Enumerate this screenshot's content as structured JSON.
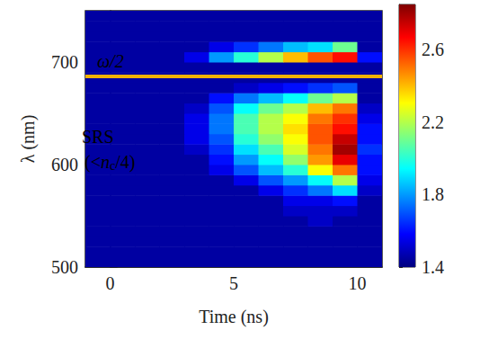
{
  "chart_data": {
    "type": "heatmap",
    "xlabel": "Time (ns)",
    "ylabel": "λ (nm)",
    "xlim": [
      -1,
      11
    ],
    "xticks": [
      0,
      5,
      10
    ],
    "ylim": [
      500,
      750
    ],
    "yticks": [
      500,
      600,
      700
    ],
    "x_bins": [
      -1,
      0,
      1,
      2,
      3,
      4,
      5,
      6,
      7,
      8,
      9,
      10,
      11
    ],
    "y_bins": [
      500,
      510,
      520,
      530,
      540,
      550,
      560,
      570,
      580,
      590,
      600,
      610,
      620,
      630,
      640,
      650,
      660,
      670,
      680,
      690,
      700,
      710,
      720,
      730,
      740,
      750
    ],
    "cells": [
      [
        1.45,
        1.45,
        1.45,
        1.45,
        1.45,
        1.45,
        1.45,
        1.45,
        1.45,
        1.45,
        1.45,
        1.45
      ],
      [
        1.45,
        1.45,
        1.45,
        1.45,
        1.45,
        1.45,
        1.45,
        1.45,
        1.45,
        1.45,
        1.45,
        1.45
      ],
      [
        1.45,
        1.45,
        1.45,
        1.45,
        1.45,
        1.45,
        1.45,
        1.45,
        1.45,
        1.45,
        1.45,
        1.45
      ],
      [
        1.45,
        1.45,
        1.45,
        1.45,
        1.45,
        1.45,
        1.45,
        1.45,
        1.45,
        1.45,
        1.45,
        1.45
      ],
      [
        1.45,
        1.45,
        1.45,
        1.45,
        1.45,
        1.45,
        1.45,
        1.45,
        1.45,
        1.5,
        1.45,
        1.45
      ],
      [
        1.45,
        1.45,
        1.45,
        1.45,
        1.45,
        1.45,
        1.45,
        1.45,
        1.5,
        1.5,
        1.5,
        1.45
      ],
      [
        1.45,
        1.45,
        1.45,
        1.45,
        1.45,
        1.45,
        1.45,
        1.45,
        1.55,
        1.55,
        1.6,
        1.45
      ],
      [
        1.45,
        1.45,
        1.45,
        1.45,
        1.45,
        1.45,
        1.45,
        1.55,
        1.65,
        1.75,
        1.9,
        1.5
      ],
      [
        1.45,
        1.45,
        1.45,
        1.45,
        1.45,
        1.45,
        1.55,
        1.7,
        1.8,
        1.95,
        2.2,
        1.55
      ],
      [
        1.45,
        1.45,
        1.45,
        1.45,
        1.45,
        1.55,
        1.7,
        1.85,
        2.0,
        2.3,
        2.5,
        1.6
      ],
      [
        1.45,
        1.45,
        1.45,
        1.45,
        1.45,
        1.6,
        1.8,
        1.95,
        2.15,
        2.45,
        2.7,
        1.6
      ],
      [
        1.45,
        1.45,
        1.45,
        1.45,
        1.5,
        1.65,
        1.9,
        2.05,
        2.25,
        2.5,
        2.8,
        1.65
      ],
      [
        1.45,
        1.45,
        1.45,
        1.45,
        1.55,
        1.7,
        2.0,
        2.15,
        2.3,
        2.55,
        2.75,
        1.6
      ],
      [
        1.45,
        1.45,
        1.45,
        1.45,
        1.55,
        1.75,
        2.05,
        2.2,
        2.35,
        2.55,
        2.65,
        1.6
      ],
      [
        1.45,
        1.45,
        1.45,
        1.45,
        1.55,
        1.75,
        2.05,
        2.2,
        2.3,
        2.5,
        2.6,
        1.55
      ],
      [
        1.45,
        1.45,
        1.45,
        1.45,
        1.5,
        1.7,
        1.95,
        2.1,
        2.2,
        2.4,
        2.5,
        1.5
      ],
      [
        1.45,
        1.45,
        1.45,
        1.45,
        1.45,
        1.6,
        1.75,
        1.85,
        1.95,
        2.1,
        2.2,
        1.45
      ],
      [
        1.45,
        1.45,
        1.45,
        1.45,
        1.45,
        1.45,
        1.5,
        1.55,
        1.6,
        1.65,
        1.7,
        1.45
      ],
      [
        1.45,
        1.45,
        1.45,
        1.45,
        1.45,
        1.45,
        1.45,
        1.45,
        1.45,
        1.45,
        1.45,
        1.45
      ],
      [
        1.45,
        1.45,
        1.45,
        1.45,
        1.45,
        1.45,
        1.45,
        1.45,
        1.45,
        1.45,
        1.45,
        1.45
      ],
      [
        1.45,
        1.45,
        1.45,
        1.45,
        1.55,
        1.8,
        2.0,
        2.2,
        2.4,
        2.55,
        2.65,
        1.6
      ],
      [
        1.45,
        1.45,
        1.45,
        1.45,
        1.45,
        1.55,
        1.65,
        1.75,
        1.85,
        1.9,
        2.1,
        1.45
      ],
      [
        1.45,
        1.45,
        1.45,
        1.45,
        1.45,
        1.45,
        1.45,
        1.45,
        1.45,
        1.45,
        1.45,
        1.45
      ],
      [
        1.45,
        1.45,
        1.45,
        1.45,
        1.45,
        1.45,
        1.45,
        1.45,
        1.45,
        1.45,
        1.45,
        1.45
      ],
      [
        1.45,
        1.45,
        1.45,
        1.45,
        1.45,
        1.45,
        1.45,
        1.45,
        1.45,
        1.45,
        1.45,
        1.45
      ]
    ],
    "colorbar": {
      "range": [
        1.4,
        2.85
      ],
      "ticks": [
        1.4,
        1.8,
        2.2,
        2.6
      ],
      "colors": [
        "#00007f",
        "#0000ff",
        "#007fff",
        "#00ffff",
        "#7fff7f",
        "#ffff00",
        "#ff7f00",
        "#ff0000",
        "#7f0000"
      ]
    },
    "reference_line": {
      "y": 686,
      "color": "#f5b100"
    },
    "annotations": [
      {
        "parts": [
          {
            "text": "ω/2",
            "font": "italic"
          }
        ]
      },
      {
        "parts": [
          {
            "text": "SRS"
          }
        ]
      },
      {
        "parts": [
          {
            "text": "(<"
          },
          {
            "text": "n",
            "font": "italic"
          },
          {
            "text": "c",
            "font": "subscript"
          },
          {
            "text": "/4)"
          }
        ]
      }
    ]
  }
}
